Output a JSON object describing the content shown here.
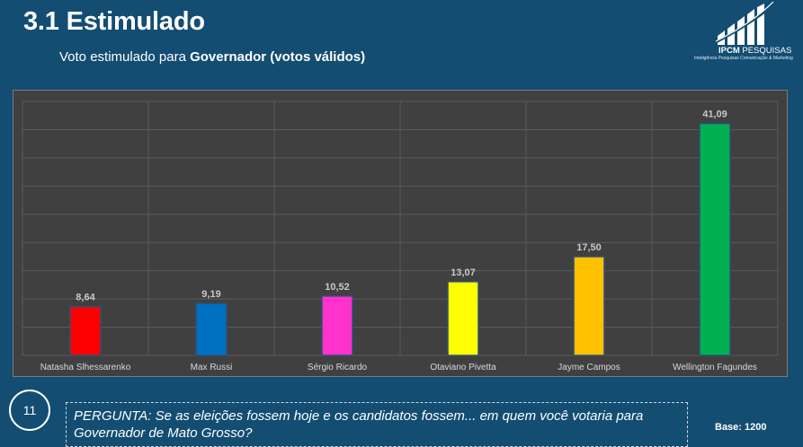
{
  "header": {
    "title": "3.1 Estimulado",
    "subtitle_prefix": "Voto estimulado para ",
    "subtitle_bold": "Governador (votos válidos)"
  },
  "logo": {
    "name_bold": "IPCM",
    "name_rest": " PESQUISAS",
    "tagline": "Inteligência Pesquisas Comunicação & Marketing"
  },
  "footer": {
    "page_number": "11",
    "question": "PERGUNTA:  Se as eleições fossem hoje e os candidatos fossem... em quem você votaria para Governador de Mato Grosso?",
    "base": "Base: 1200"
  },
  "colors": {
    "background": "#134d72",
    "plot_background": "#404040",
    "grid": "#5a5a5a"
  },
  "chart_data": {
    "type": "bar",
    "title": "",
    "xlabel": "",
    "ylabel": "",
    "ylim": [
      0,
      45
    ],
    "grid": true,
    "categories": [
      "Natasha Slhessarenko",
      "Max Russi",
      "Sérgio Ricardo",
      "Otaviano Pivetta",
      "Jayme Campos",
      "Wellington Fagundes"
    ],
    "values": [
      8.64,
      9.19,
      10.52,
      13.07,
      17.5,
      41.09
    ],
    "value_labels": [
      "8,64",
      "9,19",
      "10,52",
      "13,07",
      "17,50",
      "41,09"
    ],
    "bar_colors": [
      "#ff0000",
      "#0070c0",
      "#ff33cc",
      "#ffff00",
      "#ffc000",
      "#00b050"
    ]
  }
}
